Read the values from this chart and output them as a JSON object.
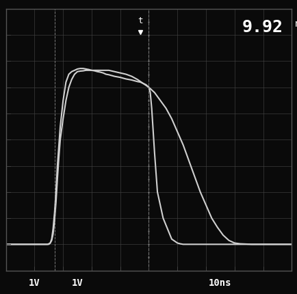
{
  "background_color": "#0a0a0a",
  "grid_color": "#444444",
  "waveform_color": "#d0d0d0",
  "text_color": "#ffffff",
  "title_text": "9.92",
  "title_superscript": "ns",
  "label_bottom_left": "1V",
  "label_bottom_mid": "1V",
  "label_bottom_right": "10ns",
  "xlim": [
    0,
    10
  ],
  "ylim": [
    0,
    10
  ],
  "grid_lines_x": [
    1,
    2,
    3,
    4,
    5,
    6,
    7,
    8,
    9
  ],
  "grid_lines_y": [
    1,
    2,
    3,
    4,
    5,
    6,
    7,
    8,
    9
  ],
  "quad_x": [
    0,
    1.5,
    1.55,
    1.6,
    1.65,
    1.7,
    1.75,
    1.8,
    1.9,
    2.0,
    2.1,
    2.2,
    2.3,
    2.4,
    2.5,
    2.6,
    2.7,
    2.8,
    2.9,
    3.0,
    3.1,
    3.2,
    3.3,
    3.4,
    3.5,
    3.6,
    3.7,
    3.8,
    3.9,
    4.0,
    4.1,
    4.2,
    4.3,
    4.4,
    4.5,
    4.6,
    4.7,
    4.8,
    4.9,
    5.0,
    5.05,
    5.1,
    5.2,
    5.3,
    5.5,
    5.8,
    6.0,
    6.1,
    6.15,
    6.2,
    6.3,
    10.0
  ],
  "quad_y": [
    1.0,
    1.0,
    1.05,
    1.2,
    1.6,
    2.2,
    3.0,
    4.0,
    5.5,
    6.5,
    7.2,
    7.5,
    7.6,
    7.65,
    7.7,
    7.72,
    7.72,
    7.7,
    7.68,
    7.65,
    7.63,
    7.6,
    7.58,
    7.55,
    7.5,
    7.48,
    7.45,
    7.42,
    7.4,
    7.38,
    7.35,
    7.32,
    7.3,
    7.28,
    7.25,
    7.22,
    7.2,
    7.15,
    7.1,
    7.0,
    6.8,
    6.2,
    4.5,
    3.0,
    2.0,
    1.2,
    1.05,
    1.02,
    1.01,
    1.0,
    1.0,
    1.0
  ],
  "single_x": [
    0.0,
    1.45,
    1.5,
    1.55,
    1.6,
    1.65,
    1.7,
    1.75,
    1.8,
    1.85,
    1.9,
    2.0,
    2.1,
    2.2,
    2.3,
    2.4,
    2.5,
    2.6,
    2.7,
    2.8,
    2.9,
    3.0,
    3.2,
    3.4,
    3.6,
    3.8,
    4.0,
    4.2,
    4.4,
    4.6,
    4.8,
    5.0,
    5.2,
    5.4,
    5.6,
    5.8,
    6.0,
    6.2,
    6.4,
    6.6,
    6.8,
    7.0,
    7.2,
    7.4,
    7.6,
    7.8,
    8.0,
    8.2,
    8.4,
    8.6,
    8.8,
    9.0,
    9.2,
    9.4,
    9.5,
    9.6,
    9.7,
    9.8,
    10.0
  ],
  "single_y": [
    1.0,
    1.0,
    1.02,
    1.05,
    1.15,
    1.4,
    1.9,
    2.6,
    3.5,
    4.3,
    5.0,
    5.8,
    6.5,
    7.0,
    7.3,
    7.5,
    7.6,
    7.62,
    7.63,
    7.65,
    7.65,
    7.65,
    7.65,
    7.65,
    7.65,
    7.6,
    7.55,
    7.5,
    7.42,
    7.3,
    7.15,
    7.0,
    6.8,
    6.5,
    6.2,
    5.8,
    5.3,
    4.8,
    4.2,
    3.6,
    3.0,
    2.5,
    2.0,
    1.65,
    1.35,
    1.15,
    1.05,
    1.02,
    1.01,
    1.0,
    1.0,
    1.0,
    1.0,
    1.0,
    1.0,
    1.0,
    1.0,
    1.0,
    1.0
  ],
  "marker_x": 4.9,
  "marker_y": 9.5,
  "figsize": [
    4.35,
    4.3
  ],
  "dpi": 100
}
